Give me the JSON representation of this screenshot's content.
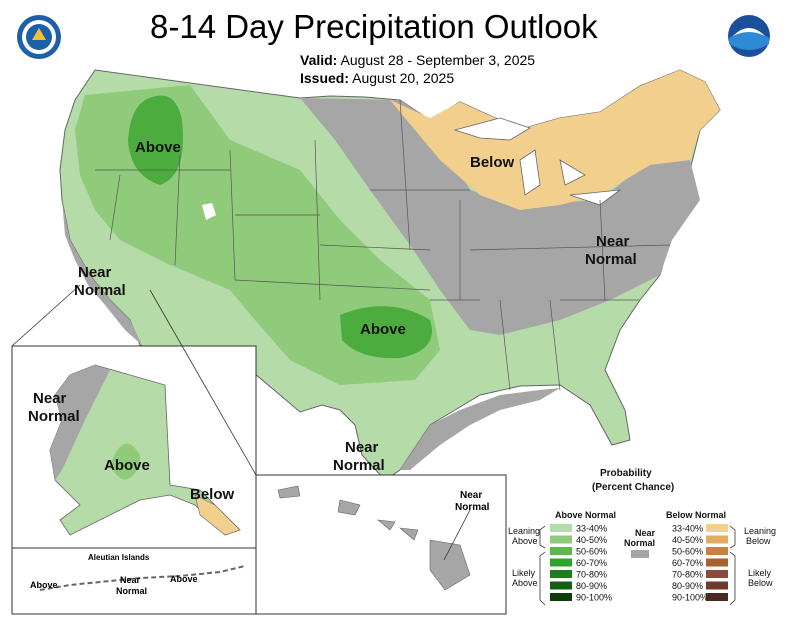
{
  "header": {
    "title": "8-14 Day Precipitation Outlook",
    "valid_label": "Valid:",
    "valid_value": "August 28 - September 3, 2025",
    "issued_label": "Issued:",
    "issued_value": "August 20, 2025"
  },
  "map_labels": {
    "above_nw": "Above",
    "above_south": "Above",
    "below_ne": "Below",
    "near_normal_west_1": "Near",
    "near_normal_west_2": "Normal",
    "near_normal_east_1": "Near",
    "near_normal_east_2": "Normal",
    "near_normal_gulf_1": "Near",
    "near_normal_gulf_2": "Normal",
    "ak_near_1": "Near",
    "ak_near_2": "Normal",
    "ak_above": "Above",
    "ak_below": "Below",
    "aleutian_title": "Aleutian Islands",
    "aleutian_above_1": "Above",
    "aleutian_near_1": "Near",
    "aleutian_near_2": "Normal",
    "aleutian_above_2": "Above",
    "hawaii_near_1": "Near",
    "hawaii_near_2": "Normal"
  },
  "legend": {
    "title_1": "Probability",
    "title_2": "(Percent Chance)",
    "above_header": "Above Normal",
    "below_header": "Below Normal",
    "near_header_1": "Near",
    "near_header_2": "Normal",
    "leaning_above_1": "Leaning",
    "leaning_above_2": "Above",
    "likely_above_1": "Likely",
    "likely_above_2": "Above",
    "leaning_below_1": "Leaning",
    "leaning_below_2": "Below",
    "likely_below_1": "Likely",
    "likely_below_2": "Below",
    "above": [
      {
        "label": "33-40%",
        "color": "#b5dba8"
      },
      {
        "label": "40-50%",
        "color": "#8fcb7a"
      },
      {
        "label": "50-60%",
        "color": "#5cb84a"
      },
      {
        "label": "60-70%",
        "color": "#2da52a"
      },
      {
        "label": "70-80%",
        "color": "#1e7d1e"
      },
      {
        "label": "80-90%",
        "color": "#155e15"
      },
      {
        "label": "90-100%",
        "color": "#0c3d0c"
      }
    ],
    "below": [
      {
        "label": "33-40%",
        "color": "#f2cf8c"
      },
      {
        "label": "40-50%",
        "color": "#e2ab5d"
      },
      {
        "label": "50-60%",
        "color": "#c9823e"
      },
      {
        "label": "60-70%",
        "color": "#a6622e"
      },
      {
        "label": "70-80%",
        "color": "#8c4a3a"
      },
      {
        "label": "80-90%",
        "color": "#6e3a2a"
      },
      {
        "label": "90-100%",
        "color": "#4a2a20"
      }
    ],
    "near_color": "#a6a6a6"
  }
}
